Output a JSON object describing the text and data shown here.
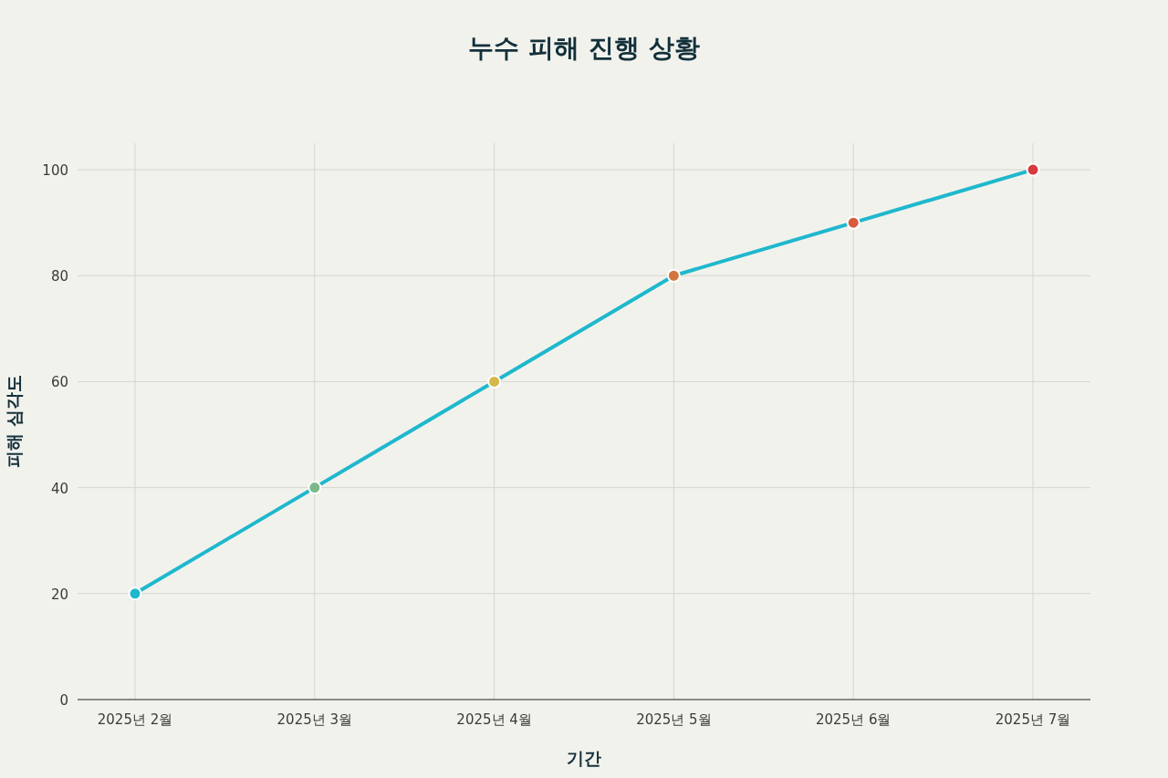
{
  "chart_data": {
    "type": "line",
    "title": "누수 피해 진행 상황",
    "xlabel": "기간",
    "ylabel": "피해 심각도",
    "categories": [
      "2025년 2월",
      "2025년 3월",
      "2025년 4월",
      "2025년 5월",
      "2025년 6월",
      "2025년 7월"
    ],
    "series": [
      {
        "color": "#1fb8cd",
        "colors": [
          "#1fb8cd",
          "#7cb98a",
          "#d4b84a",
          "#d2763f",
          "#d85b3e",
          "#d73b3e"
        ],
        "values": [
          20,
          40,
          60,
          80,
          90,
          100
        ]
      }
    ],
    "ylim": [
      0,
      105
    ],
    "yticks": [
      0,
      20,
      40,
      60,
      80,
      100
    ],
    "grid": true,
    "marker": "circle",
    "line_style": "solid"
  }
}
